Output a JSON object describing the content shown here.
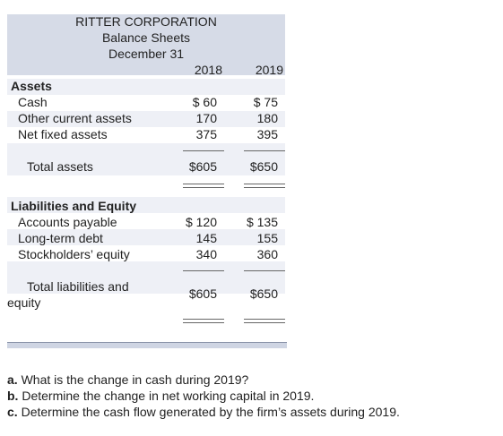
{
  "header": {
    "company": "RITTER CORPORATION",
    "statement": "Balance Sheets",
    "date": "December 31"
  },
  "columns": [
    "2018",
    "2019"
  ],
  "assets": {
    "heading": "Assets",
    "rows": [
      {
        "label": "Cash",
        "y2018": "$ 60",
        "y2019": "$ 75"
      },
      {
        "label": "Other current assets",
        "y2018": "170",
        "y2019": "180"
      },
      {
        "label": "Net fixed assets",
        "y2018": "375",
        "y2019": "395"
      }
    ],
    "total": {
      "label": "Total assets",
      "y2018": "$605",
      "y2019": "$650"
    }
  },
  "liabilities": {
    "heading": "Liabilities and Equity",
    "rows": [
      {
        "label": "Accounts payable",
        "y2018": "$ 120",
        "y2019": "$ 135"
      },
      {
        "label": "Long-term debt",
        "y2018": "145",
        "y2019": "155"
      },
      {
        "label": "Stockholders’ equity",
        "y2018": "340",
        "y2019": "360"
      }
    ],
    "total": {
      "label_line1": "Total liabilities and",
      "label_line2": "equity",
      "y2018": "$605",
      "y2019": "$650"
    }
  },
  "questions": [
    {
      "letter": "a.",
      "text": "What is the change in cash during 2019?"
    },
    {
      "letter": "b.",
      "text": "Determine the change in net working capital in 2019."
    },
    {
      "letter": "c.",
      "text": "Determine the cash flow generated by the firm’s assets during 2019."
    }
  ]
}
